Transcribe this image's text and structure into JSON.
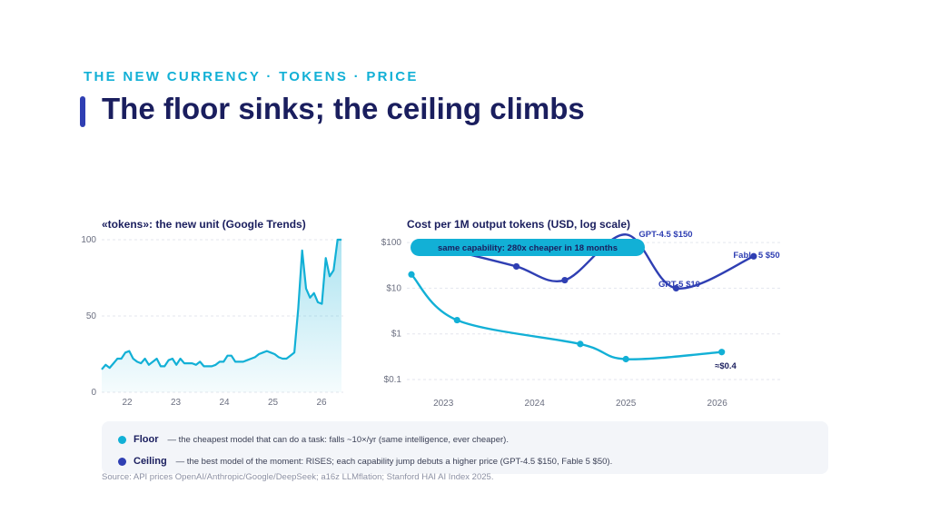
{
  "header": {
    "kicker": "THE NEW CURRENCY · TOKENS · PRICE",
    "title": "The floor sinks; the ceiling climbs"
  },
  "colors": {
    "floor": "#12b0d6",
    "ceiling": "#2f3fb3",
    "navy": "#1a1e5e"
  },
  "chart_data": [
    {
      "type": "area",
      "title": "«tokens»: the new unit (Google Trends)",
      "xlabel": "",
      "ylabel": "",
      "ylim": [
        0,
        100
      ],
      "yticks": [
        "0",
        "50",
        "100"
      ],
      "xticks": [
        "22",
        "23",
        "24",
        "25",
        "26"
      ],
      "grid": "horizontal dashed",
      "series": [
        {
          "values": [
            15,
            18,
            16,
            19,
            22,
            22,
            26,
            27,
            22,
            20,
            19,
            22,
            18,
            20,
            22,
            17,
            17,
            21,
            22,
            18,
            22,
            19,
            19,
            19,
            18,
            20,
            17,
            17,
            17,
            18,
            20,
            20,
            24,
            24,
            20,
            20,
            20,
            21,
            22,
            23,
            25,
            26,
            27,
            26,
            25,
            23,
            22,
            22,
            24,
            26,
            55,
            93,
            68,
            62,
            65,
            59,
            58,
            88,
            76,
            80,
            100,
            100
          ]
        }
      ]
    },
    {
      "type": "line",
      "title": "Cost per 1M output tokens (USD, log scale)",
      "xlabel": "",
      "ylabel": "",
      "yscale": "log",
      "ylim": [
        0.1,
        150
      ],
      "yticks": [
        "$0.1",
        "$1",
        "$10",
        "$100"
      ],
      "xticks": [
        "2023",
        "2024",
        "2025",
        "2026"
      ],
      "xlim": [
        2022.6,
        2026.7
      ],
      "grid": "horizontal dashed",
      "series": [
        {
          "name": "Floor",
          "color": "#12b0d6",
          "points": [
            [
              2022.65,
              20
            ],
            [
              2023.15,
              2
            ],
            [
              2024.5,
              0.6
            ],
            [
              2025.0,
              0.28
            ],
            [
              2026.05,
              0.4
            ]
          ]
        },
        {
          "name": "Ceiling",
          "color": "#2f3fb3",
          "points": [
            [
              2023.2,
              60
            ],
            [
              2023.8,
              30
            ],
            [
              2024.33,
              15
            ],
            [
              2025.0,
              150
            ],
            [
              2025.55,
              10
            ],
            [
              2026.4,
              50
            ]
          ]
        }
      ],
      "annotations": [
        {
          "text": "GPT-4.5 $150"
        },
        {
          "text": "GPT-5 $10"
        },
        {
          "text": "Fable 5 $50"
        },
        {
          "text": "≈$0.4"
        }
      ],
      "callout": "same capability: 280x cheaper in 18 months"
    }
  ],
  "legend": {
    "floor_name": "Floor",
    "floor_desc": "— the cheapest model that can do a task: falls ~10×/yr (same intelligence, ever cheaper).",
    "ceiling_name": "Ceiling",
    "ceiling_desc": "— the best model of the moment: RISES; each capability jump debuts a higher price (GPT-4.5 $150, Fable 5 $50)."
  },
  "source": "Source: API prices OpenAI/Anthropic/Google/DeepSeek; a16z LLMflation; Stanford HAI AI Index 2025."
}
